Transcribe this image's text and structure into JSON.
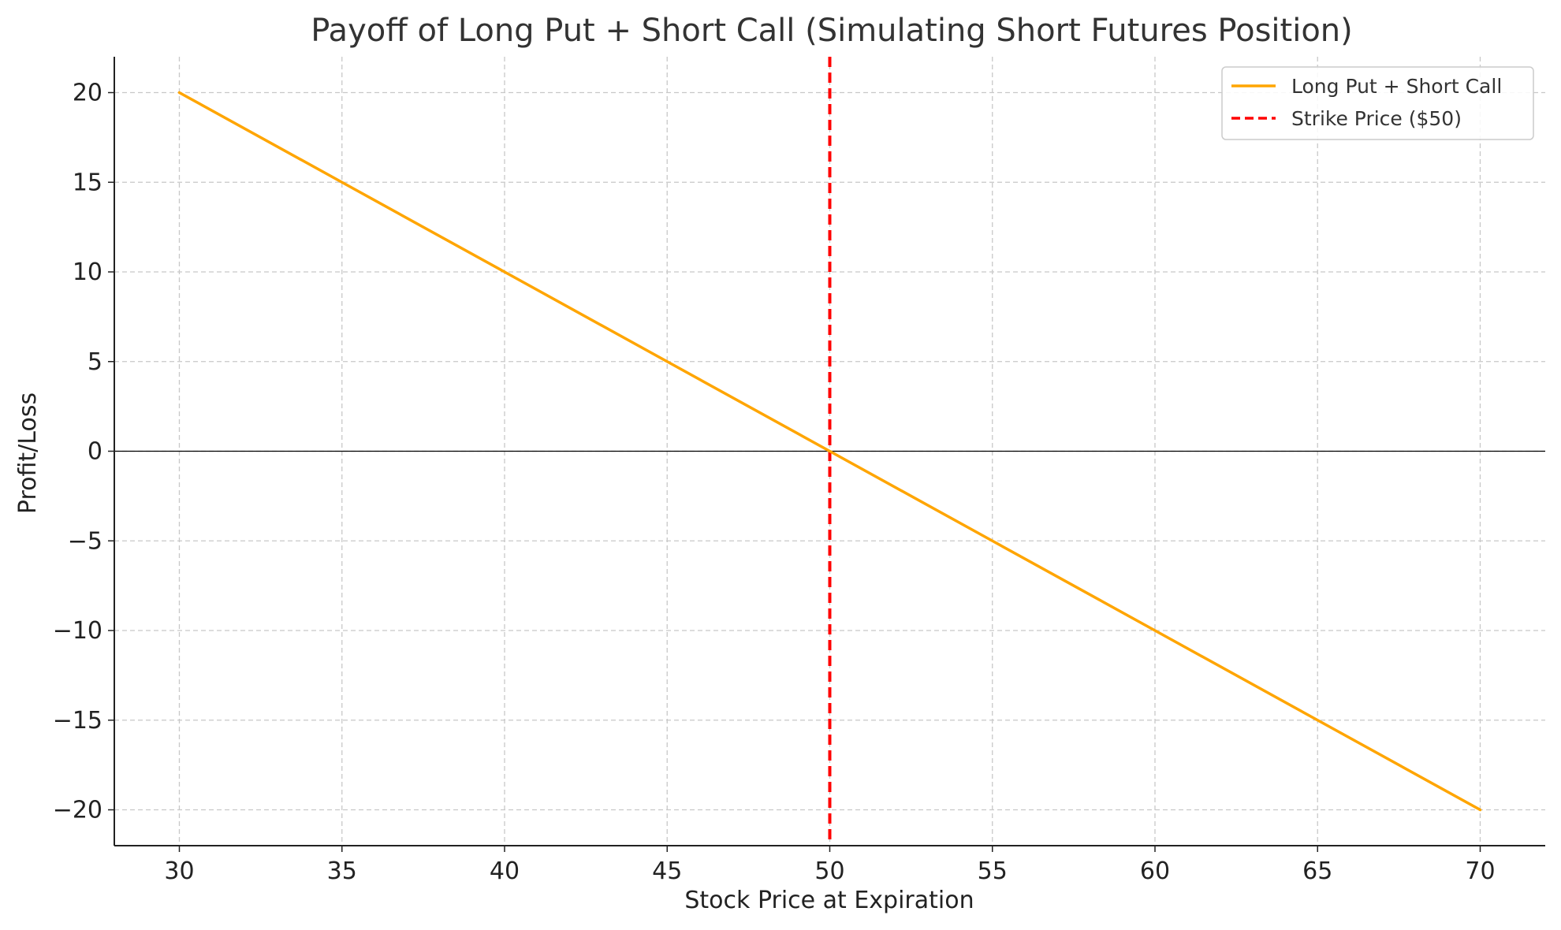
{
  "chart_data": {
    "type": "line",
    "title": "Payoff of Long Put + Short Call (Simulating Short Futures Position)",
    "xlabel": "Stock Price at Expiration",
    "ylabel": "Profit/Loss",
    "xlim": [
      28,
      72
    ],
    "ylim": [
      -22,
      22
    ],
    "x_ticks": [
      30,
      35,
      40,
      45,
      50,
      55,
      60,
      65,
      70
    ],
    "y_ticks": [
      20,
      15,
      10,
      5,
      0,
      -5,
      -10,
      -15,
      -20
    ],
    "x_tick_labels": [
      "30",
      "35",
      "40",
      "45",
      "50",
      "55",
      "60",
      "65",
      "70"
    ],
    "y_tick_labels": [
      "20",
      "15",
      "10",
      "5",
      "0",
      "−5",
      "−10",
      "−15",
      "−20"
    ],
    "grid": true,
    "legend_position": "top-right",
    "series": [
      {
        "name": "Long Put + Short Call",
        "color": "#FFA500",
        "style": "solid",
        "x": [
          30,
          35,
          40,
          45,
          50,
          55,
          60,
          65,
          70
        ],
        "y": [
          20,
          15,
          10,
          5,
          0,
          -5,
          -10,
          -15,
          -20
        ]
      }
    ],
    "reference_lines": [
      {
        "type": "vertical",
        "x": 50,
        "label": "Strike Price ($50)",
        "color": "#FF0000",
        "style": "dashed"
      },
      {
        "type": "horizontal",
        "y": 0,
        "label": "",
        "color": "#000000",
        "style": "solid"
      }
    ]
  }
}
